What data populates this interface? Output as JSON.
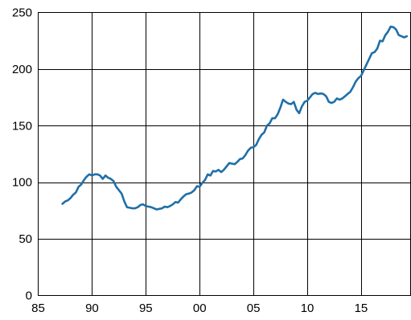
{
  "colors": {
    "series": "#1f6fa8",
    "grid": "#000000",
    "background": "#ffffff"
  },
  "chart_data": {
    "type": "line",
    "title": "",
    "xlabel": "",
    "ylabel": "",
    "xlim": [
      1985,
      2019.6
    ],
    "ylim": [
      0,
      250
    ],
    "xticks": [
      1985,
      1990,
      1995,
      2000,
      2005,
      2010,
      2015
    ],
    "xtick_labels": [
      "85",
      "90",
      "95",
      "00",
      "05",
      "10",
      "15"
    ],
    "yticks": [
      0,
      50,
      100,
      150,
      200,
      250
    ],
    "ytick_labels": [
      "0",
      "50",
      "100",
      "150",
      "200",
      "250"
    ],
    "grid": true,
    "legend": "none",
    "series": [
      {
        "x": [
          1987.25,
          1987.5,
          1987.75,
          1988.0,
          1988.25,
          1988.5,
          1988.75,
          1989.0,
          1989.25,
          1989.5,
          1989.75,
          1990.0,
          1990.25,
          1990.5,
          1990.75,
          1991.0,
          1991.25,
          1991.5,
          1991.75,
          1992.0,
          1992.25,
          1992.5,
          1992.75,
          1993.0,
          1993.25,
          1993.5,
          1993.75,
          1994.0,
          1994.25,
          1994.5,
          1994.75,
          1995.0,
          1995.25,
          1995.5,
          1995.75,
          1996.0,
          1996.25,
          1996.5,
          1996.75,
          1997.0,
          1997.25,
          1997.5,
          1997.75,
          1998.0,
          1998.25,
          1998.5,
          1998.75,
          1999.0,
          1999.25,
          1999.5,
          1999.75,
          2000.0,
          2000.25,
          2000.5,
          2000.75,
          2001.0,
          2001.25,
          2001.5,
          2001.75,
          2002.0,
          2002.25,
          2002.5,
          2002.75,
          2003.0,
          2003.25,
          2003.5,
          2003.75,
          2004.0,
          2004.25,
          2004.5,
          2004.75,
          2005.0,
          2005.25,
          2005.5,
          2005.75,
          2006.0,
          2006.25,
          2006.5,
          2006.75,
          2007.0,
          2007.25,
          2007.5,
          2007.75,
          2008.0,
          2008.25,
          2008.5,
          2008.75,
          2009.0,
          2009.25,
          2009.5,
          2009.75,
          2010.0,
          2010.25,
          2010.5,
          2010.75,
          2011.0,
          2011.25,
          2011.5,
          2011.75,
          2012.0,
          2012.25,
          2012.5,
          2012.75,
          2013.0,
          2013.25,
          2013.5,
          2013.75,
          2014.0,
          2014.25,
          2014.5,
          2014.75,
          2015.0,
          2015.25,
          2015.5,
          2015.75,
          2016.0,
          2016.25,
          2016.5,
          2016.75,
          2017.0,
          2017.25,
          2017.5,
          2017.75,
          2018.0,
          2018.25,
          2018.5,
          2018.75,
          2019.0,
          2019.25
        ],
        "values": [
          81,
          83,
          84,
          86,
          89,
          91,
          96,
          98,
          102,
          105,
          107,
          106,
          107,
          107,
          106,
          103,
          106,
          104,
          103,
          101,
          96,
          93,
          90,
          83,
          78,
          77.5,
          77,
          77,
          78,
          80,
          80.5,
          79,
          78.5,
          78,
          77,
          76,
          76.5,
          77,
          78.5,
          78,
          79,
          80.5,
          82.5,
          82,
          85,
          87.5,
          89.5,
          90,
          91,
          93,
          96.5,
          96,
          99.5,
          102,
          107,
          106,
          110,
          109.5,
          111,
          109,
          111,
          114,
          117,
          116.5,
          116,
          118,
          120.5,
          121,
          124,
          128,
          130.5,
          131,
          133,
          138,
          142,
          144,
          150,
          152,
          156.5,
          156.5,
          160,
          166,
          173,
          171,
          169.5,
          169,
          171,
          164,
          161,
          167,
          171,
          172,
          175,
          178,
          179,
          178,
          178.5,
          178,
          176,
          171,
          170,
          171,
          174,
          173,
          174,
          176,
          178,
          180,
          184,
          189,
          192,
          194,
          199,
          204,
          209,
          214,
          215,
          218,
          225,
          224.5,
          230,
          233,
          237.5,
          237,
          235,
          230,
          229,
          228,
          229
        ]
      }
    ]
  }
}
